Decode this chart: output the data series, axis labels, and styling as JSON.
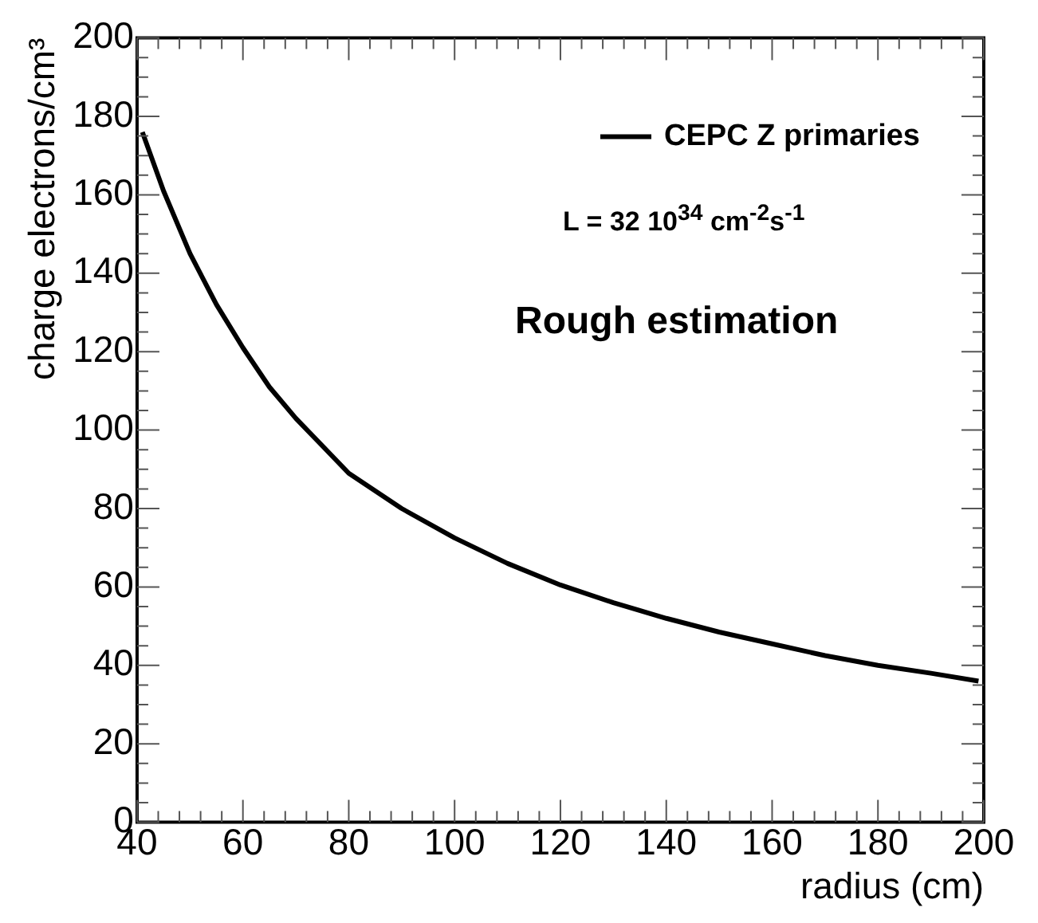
{
  "chart_data": {
    "type": "line",
    "xlabel": "radius (cm)",
    "ylabel": "charge electrons/cm³",
    "annotations": [
      "L = 32 10$^{34}$ cm$^{-2}$s$^{-1}$",
      "Rough estimation"
    ],
    "series": [
      {
        "name": "CEPC Z primaries",
        "color": "#000000",
        "x": [
          41,
          45,
          50,
          55,
          60,
          65,
          70,
          75,
          80,
          90,
          100,
          110,
          120,
          130,
          140,
          150,
          160,
          170,
          180,
          190,
          199
        ],
        "values": [
          176,
          161,
          145,
          132,
          121,
          111,
          103,
          96,
          89,
          80,
          72.5,
          66,
          60.5,
          56,
          52,
          48.5,
          45.5,
          42.5,
          40,
          38,
          36
        ]
      }
    ],
    "xlim": [
      40,
      200
    ],
    "xticks": [
      40,
      60,
      80,
      100,
      120,
      140,
      160,
      180,
      200
    ],
    "ylim": [
      0,
      200
    ],
    "yticks": [
      0,
      20,
      40,
      60,
      80,
      100,
      120,
      140,
      160,
      180,
      200
    ],
    "legend": "top right",
    "grid": false,
    "marker": "none",
    "line_style": "solid"
  }
}
